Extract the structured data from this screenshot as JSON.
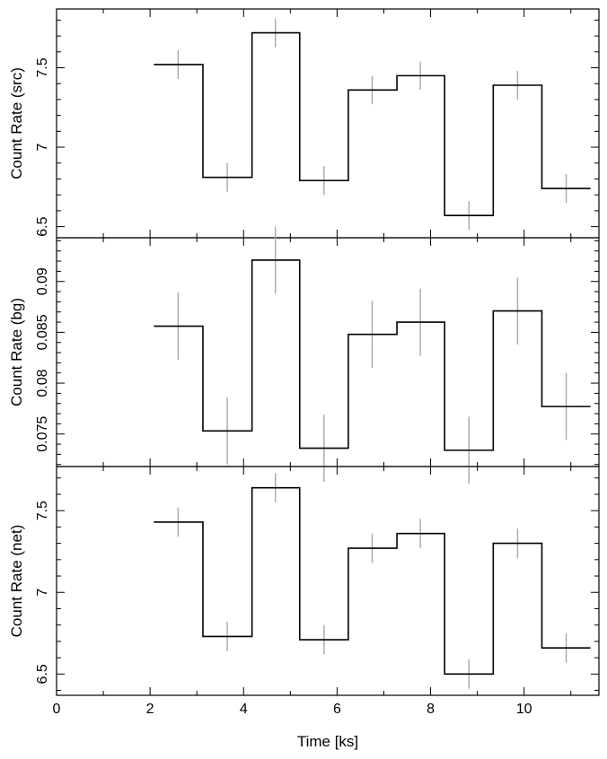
{
  "chart_data": {
    "type": "line",
    "drawstyle": "steps",
    "xlabel": "Time [ks]",
    "xlim": [
      0,
      11.6
    ],
    "x_ticks": [
      0,
      2,
      4,
      6,
      8,
      10
    ],
    "bin_edges": [
      2.08,
      3.13,
      4.18,
      5.2,
      6.24,
      7.28,
      8.3,
      9.34,
      10.38,
      11.42
    ],
    "bin_centers": [
      2.6,
      3.65,
      4.68,
      5.72,
      6.75,
      7.78,
      8.82,
      9.86,
      10.9
    ],
    "panels": [
      {
        "name": "src",
        "ylabel": "Count Rate (src)",
        "ylim": [
          6.43,
          7.87
        ],
        "y_ticks": [
          6.5,
          7,
          7.5
        ],
        "y_tick_labels": [
          "6.5",
          "7",
          "7.5"
        ],
        "values": [
          7.52,
          6.81,
          7.72,
          6.79,
          7.36,
          7.45,
          6.57,
          7.39,
          6.74
        ],
        "errors": [
          0.09,
          0.09,
          0.09,
          0.09,
          0.09,
          0.09,
          0.09,
          0.09,
          0.09
        ]
      },
      {
        "name": "bg",
        "ylabel": "Count Rate (bg)",
        "ylim": [
          0.0718,
          0.0943
        ],
        "y_ticks": [
          0.075,
          0.08,
          0.085,
          0.09
        ],
        "y_tick_labels": [
          "0.075",
          "0.08",
          "0.085",
          "0.09"
        ],
        "values": [
          0.0856,
          0.0753,
          0.0921,
          0.0736,
          0.0848,
          0.086,
          0.0734,
          0.0871,
          0.0777
        ],
        "errors": [
          0.0033,
          0.0033,
          0.0033,
          0.0033,
          0.0033,
          0.0033,
          0.0033,
          0.0033,
          0.0033
        ]
      },
      {
        "name": "net",
        "ylabel": "Count Rate (net)",
        "ylim": [
          6.37,
          7.77
        ],
        "y_ticks": [
          6.5,
          7,
          7.5
        ],
        "y_tick_labels": [
          "6.5",
          "7",
          "7.5"
        ],
        "values": [
          7.43,
          6.73,
          7.64,
          6.71,
          7.27,
          7.36,
          6.5,
          7.3,
          6.66
        ],
        "errors": [
          0.09,
          0.09,
          0.09,
          0.09,
          0.09,
          0.09,
          0.09,
          0.09,
          0.09
        ]
      }
    ]
  }
}
